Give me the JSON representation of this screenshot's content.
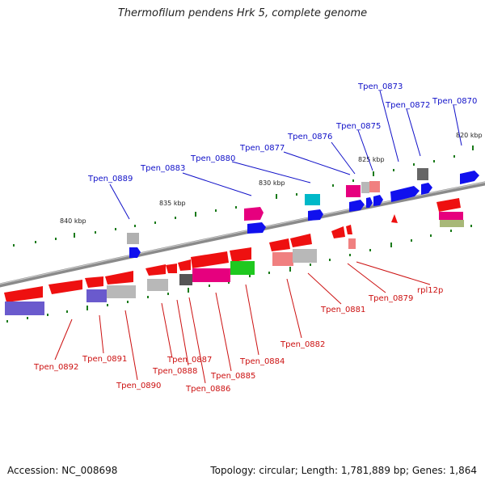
{
  "title": "Thermofilum pendens Hrk 5, complete genome",
  "footer": {
    "accession": "Accession: NC_008698",
    "summary": "Topology: circular; Length: 1,781,889 bp; Genes: 1,864"
  },
  "scale_labels": [
    "840 kbp",
    "835 kbp",
    "830 kbp",
    "825 kbp",
    "820 kbp"
  ],
  "top_labels": [
    "Tpen_0889",
    "Tpen_0883",
    "Tpen_0880",
    "Tpen_0877",
    "Tpen_0876",
    "Tpen_0875",
    "Tpen_0873",
    "Tpen_0872",
    "Tpen_0870"
  ],
  "bottom_labels": [
    "Tpen_0892",
    "Tpen_0891",
    "Tpen_0890",
    "Tpen_0888",
    "Tpen_0887",
    "Tpen_0886",
    "Tpen_0885",
    "Tpen_0884",
    "Tpen_0882",
    "Tpen_0881",
    "Tpen_0879",
    "rpl12p"
  ],
  "colors": {
    "label_top": "#1010c8",
    "label_bottom": "#cc1010",
    "backbone": "#808080",
    "forward_gene": "#1010ee",
    "reverse_gene": "#ee1010"
  }
}
